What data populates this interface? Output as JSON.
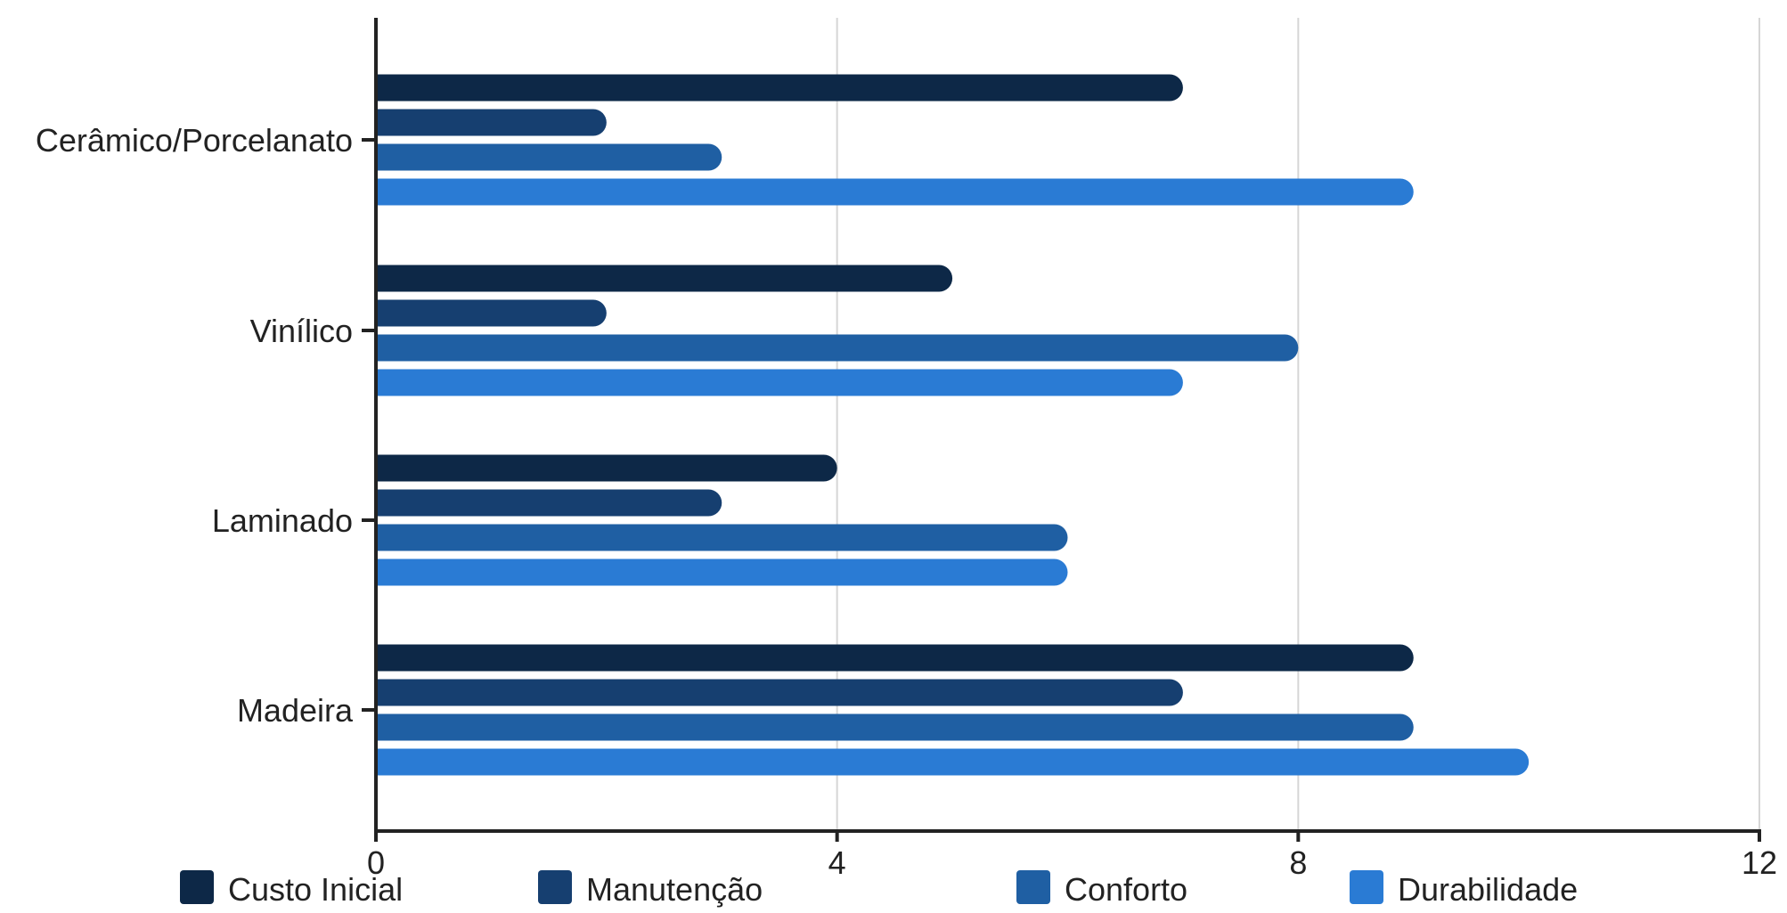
{
  "chart_data": {
    "type": "bar",
    "orientation": "horizontal",
    "categories": [
      "Cerâmico/Porcelanato",
      "Vinílico",
      "Laminado",
      "Madeira"
    ],
    "series": [
      {
        "name": "Custo Inicial",
        "color": "#0d2847",
        "values": [
          7,
          5,
          4,
          9
        ]
      },
      {
        "name": "Manutenção",
        "color": "#163f70",
        "values": [
          2,
          2,
          3,
          7
        ]
      },
      {
        "name": "Conforto",
        "color": "#1f5fa3",
        "values": [
          3,
          8,
          6,
          9
        ]
      },
      {
        "name": "Durabilidade",
        "color": "#2a7bd4",
        "values": [
          9,
          7,
          6,
          10
        ]
      }
    ],
    "xlim": [
      0,
      12
    ],
    "xticks": [
      0,
      4,
      8,
      12
    ],
    "xtick_labels": [
      "0",
      "4",
      "8",
      "12"
    ],
    "grid": true,
    "legend_position": "bottom"
  }
}
